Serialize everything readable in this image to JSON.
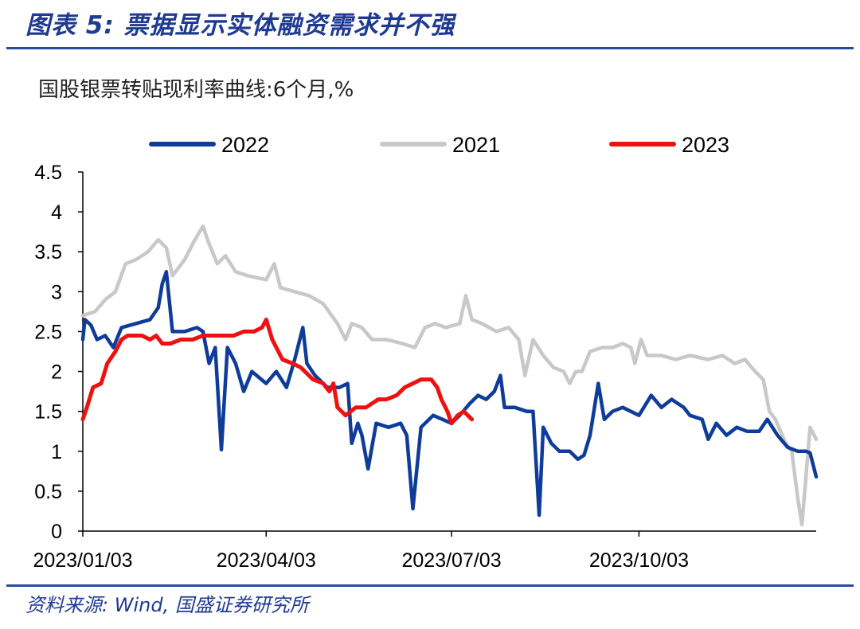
{
  "header": {
    "figure_title": "图表 5:  票据显示实体融资需求并不强",
    "subtitle": "国股银票转贴现利率曲线:6个月,%"
  },
  "footer": {
    "source": "资料来源:  Wind,  国盛证券研究所"
  },
  "colors": {
    "title_blue": "#1f3a93",
    "rule_blue": "#2a4aa0",
    "series_2022": "#0f3c9a",
    "series_2021": "#c8c8c8",
    "series_2023": "#ee1111"
  },
  "chart_data": {
    "type": "line",
    "title": "国股银票转贴现利率曲线:6个月,%",
    "ylim": [
      0,
      4.5
    ],
    "y_ticks": [
      "0",
      "0.5",
      "1",
      "1.5",
      "2",
      "2.5",
      "3",
      "3.5",
      "4",
      "4.5"
    ],
    "x_range": [
      "2023-01-03",
      "2023-12-29"
    ],
    "x_ticks": [
      {
        "date": "2023-01-03",
        "label": "2023/01/03"
      },
      {
        "date": "2023-04-03",
        "label": "2023/04/03"
      },
      {
        "date": "2023-07-03",
        "label": "2023/07/03"
      },
      {
        "date": "2023-10-03",
        "label": "2023/10/03"
      }
    ],
    "grid": false,
    "legend_position": "top",
    "series": [
      {
        "name": "2022",
        "color_key": "series_2022",
        "points": [
          [
            "2023-01-03",
            2.4
          ],
          [
            "2023-01-04",
            2.65
          ],
          [
            "2023-01-07",
            2.58
          ],
          [
            "2023-01-10",
            2.4
          ],
          [
            "2023-01-14",
            2.45
          ],
          [
            "2023-01-18",
            2.3
          ],
          [
            "2023-01-22",
            2.55
          ],
          [
            "2023-01-29",
            2.6
          ],
          [
            "2023-02-05",
            2.65
          ],
          [
            "2023-02-09",
            2.8
          ],
          [
            "2023-02-11",
            3.1
          ],
          [
            "2023-02-13",
            3.25
          ],
          [
            "2023-02-16",
            2.5
          ],
          [
            "2023-02-22",
            2.5
          ],
          [
            "2023-02-28",
            2.55
          ],
          [
            "2023-03-03",
            2.5
          ],
          [
            "2023-03-06",
            2.1
          ],
          [
            "2023-03-09",
            2.3
          ],
          [
            "2023-03-12",
            1.02
          ],
          [
            "2023-03-15",
            2.3
          ],
          [
            "2023-03-19",
            2.1
          ],
          [
            "2023-03-23",
            1.75
          ],
          [
            "2023-03-27",
            2.0
          ],
          [
            "2023-04-03",
            1.85
          ],
          [
            "2023-04-08",
            2.0
          ],
          [
            "2023-04-13",
            1.8
          ],
          [
            "2023-04-17",
            2.15
          ],
          [
            "2023-04-21",
            2.55
          ],
          [
            "2023-04-23",
            2.1
          ],
          [
            "2023-04-27",
            1.95
          ],
          [
            "2023-05-03",
            1.8
          ],
          [
            "2023-05-09",
            1.8
          ],
          [
            "2023-05-13",
            1.85
          ],
          [
            "2023-05-15",
            1.1
          ],
          [
            "2023-05-18",
            1.35
          ],
          [
            "2023-05-20",
            1.2
          ],
          [
            "2023-05-23",
            0.78
          ],
          [
            "2023-05-27",
            1.35
          ],
          [
            "2023-06-02",
            1.3
          ],
          [
            "2023-06-08",
            1.35
          ],
          [
            "2023-06-11",
            1.2
          ],
          [
            "2023-06-14",
            0.28
          ],
          [
            "2023-06-18",
            1.3
          ],
          [
            "2023-06-24",
            1.45
          ],
          [
            "2023-07-03",
            1.35
          ],
          [
            "2023-07-07",
            1.45
          ],
          [
            "2023-07-12",
            1.6
          ],
          [
            "2023-07-16",
            1.7
          ],
          [
            "2023-07-20",
            1.65
          ],
          [
            "2023-07-24",
            1.75
          ],
          [
            "2023-07-27",
            1.95
          ],
          [
            "2023-07-29",
            1.55
          ],
          [
            "2023-08-03",
            1.55
          ],
          [
            "2023-08-09",
            1.5
          ],
          [
            "2023-08-12",
            1.5
          ],
          [
            "2023-08-15",
            0.2
          ],
          [
            "2023-08-17",
            1.3
          ],
          [
            "2023-08-21",
            1.1
          ],
          [
            "2023-08-25",
            1.0
          ],
          [
            "2023-08-30",
            1.0
          ],
          [
            "2023-09-03",
            0.9
          ],
          [
            "2023-09-06",
            0.95
          ],
          [
            "2023-09-09",
            1.2
          ],
          [
            "2023-09-13",
            1.85
          ],
          [
            "2023-09-16",
            1.4
          ],
          [
            "2023-09-20",
            1.5
          ],
          [
            "2023-09-25",
            1.55
          ],
          [
            "2023-10-03",
            1.45
          ],
          [
            "2023-10-09",
            1.7
          ],
          [
            "2023-10-14",
            1.55
          ],
          [
            "2023-10-19",
            1.65
          ],
          [
            "2023-10-25",
            1.55
          ],
          [
            "2023-10-28",
            1.45
          ],
          [
            "2023-11-03",
            1.4
          ],
          [
            "2023-11-06",
            1.15
          ],
          [
            "2023-11-10",
            1.35
          ],
          [
            "2023-11-15",
            1.2
          ],
          [
            "2023-11-20",
            1.3
          ],
          [
            "2023-11-25",
            1.25
          ],
          [
            "2023-12-01",
            1.25
          ],
          [
            "2023-12-05",
            1.4
          ],
          [
            "2023-12-10",
            1.2
          ],
          [
            "2023-12-15",
            1.05
          ],
          [
            "2023-12-20",
            1.0
          ],
          [
            "2023-12-24",
            1.0
          ],
          [
            "2023-12-26",
            0.98
          ],
          [
            "2023-12-29",
            0.68
          ]
        ]
      },
      {
        "name": "2021",
        "color_key": "series_2021",
        "points": [
          [
            "2023-01-03",
            2.7
          ],
          [
            "2023-01-09",
            2.75
          ],
          [
            "2023-01-14",
            2.9
          ],
          [
            "2023-01-19",
            3.0
          ],
          [
            "2023-01-24",
            3.35
          ],
          [
            "2023-01-29",
            3.4
          ],
          [
            "2023-02-04",
            3.5
          ],
          [
            "2023-02-09",
            3.65
          ],
          [
            "2023-02-13",
            3.55
          ],
          [
            "2023-02-16",
            3.2
          ],
          [
            "2023-02-22",
            3.4
          ],
          [
            "2023-02-27",
            3.65
          ],
          [
            "2023-03-03",
            3.82
          ],
          [
            "2023-03-06",
            3.6
          ],
          [
            "2023-03-10",
            3.35
          ],
          [
            "2023-03-14",
            3.45
          ],
          [
            "2023-03-19",
            3.25
          ],
          [
            "2023-03-25",
            3.2
          ],
          [
            "2023-04-03",
            3.15
          ],
          [
            "2023-04-07",
            3.35
          ],
          [
            "2023-04-10",
            3.05
          ],
          [
            "2023-04-17",
            3.0
          ],
          [
            "2023-04-24",
            2.95
          ],
          [
            "2023-05-01",
            2.85
          ],
          [
            "2023-05-08",
            2.6
          ],
          [
            "2023-05-12",
            2.4
          ],
          [
            "2023-05-15",
            2.6
          ],
          [
            "2023-05-20",
            2.55
          ],
          [
            "2023-05-25",
            2.4
          ],
          [
            "2023-06-01",
            2.4
          ],
          [
            "2023-06-09",
            2.35
          ],
          [
            "2023-06-15",
            2.3
          ],
          [
            "2023-06-20",
            2.55
          ],
          [
            "2023-06-25",
            2.6
          ],
          [
            "2023-06-30",
            2.55
          ],
          [
            "2023-07-07",
            2.6
          ],
          [
            "2023-07-10",
            2.95
          ],
          [
            "2023-07-13",
            2.65
          ],
          [
            "2023-07-18",
            2.6
          ],
          [
            "2023-07-25",
            2.5
          ],
          [
            "2023-07-31",
            2.55
          ],
          [
            "2023-08-05",
            2.4
          ],
          [
            "2023-08-08",
            1.95
          ],
          [
            "2023-08-12",
            2.4
          ],
          [
            "2023-08-17",
            2.2
          ],
          [
            "2023-08-22",
            2.05
          ],
          [
            "2023-08-27",
            2.0
          ],
          [
            "2023-08-30",
            1.85
          ],
          [
            "2023-09-02",
            2.0
          ],
          [
            "2023-09-05",
            2.0
          ],
          [
            "2023-09-09",
            2.25
          ],
          [
            "2023-09-15",
            2.3
          ],
          [
            "2023-09-20",
            2.3
          ],
          [
            "2023-09-25",
            2.35
          ],
          [
            "2023-09-29",
            2.3
          ],
          [
            "2023-10-01",
            2.1
          ],
          [
            "2023-10-04",
            2.4
          ],
          [
            "2023-10-07",
            2.2
          ],
          [
            "2023-10-14",
            2.2
          ],
          [
            "2023-10-21",
            2.15
          ],
          [
            "2023-10-28",
            2.2
          ],
          [
            "2023-11-06",
            2.15
          ],
          [
            "2023-11-13",
            2.2
          ],
          [
            "2023-11-19",
            2.1
          ],
          [
            "2023-11-24",
            2.15
          ],
          [
            "2023-11-29",
            2.0
          ],
          [
            "2023-12-03",
            1.9
          ],
          [
            "2023-12-06",
            1.5
          ],
          [
            "2023-12-09",
            1.4
          ],
          [
            "2023-12-14",
            1.1
          ],
          [
            "2023-12-17",
            1.0
          ],
          [
            "2023-12-20",
            0.4
          ],
          [
            "2023-12-22",
            0.08
          ],
          [
            "2023-12-26",
            1.3
          ],
          [
            "2023-12-29",
            1.15
          ]
        ]
      },
      {
        "name": "2023",
        "color_key": "series_2023",
        "points": [
          [
            "2023-01-03",
            1.4
          ],
          [
            "2023-01-05",
            1.55
          ],
          [
            "2023-01-08",
            1.8
          ],
          [
            "2023-01-12",
            1.85
          ],
          [
            "2023-01-15",
            2.1
          ],
          [
            "2023-01-19",
            2.25
          ],
          [
            "2023-01-22",
            2.4
          ],
          [
            "2023-01-25",
            2.45
          ],
          [
            "2023-02-01",
            2.45
          ],
          [
            "2023-02-05",
            2.4
          ],
          [
            "2023-02-08",
            2.45
          ],
          [
            "2023-02-11",
            2.35
          ],
          [
            "2023-02-15",
            2.35
          ],
          [
            "2023-02-20",
            2.4
          ],
          [
            "2023-02-26",
            2.4
          ],
          [
            "2023-03-03",
            2.45
          ],
          [
            "2023-03-08",
            2.45
          ],
          [
            "2023-03-13",
            2.45
          ],
          [
            "2023-03-18",
            2.45
          ],
          [
            "2023-03-23",
            2.5
          ],
          [
            "2023-03-28",
            2.5
          ],
          [
            "2023-04-01",
            2.55
          ],
          [
            "2023-04-03",
            2.65
          ],
          [
            "2023-04-06",
            2.4
          ],
          [
            "2023-04-11",
            2.15
          ],
          [
            "2023-04-16",
            2.1
          ],
          [
            "2023-04-20",
            2.05
          ],
          [
            "2023-04-26",
            1.9
          ],
          [
            "2023-05-01",
            1.85
          ],
          [
            "2023-05-04",
            1.75
          ],
          [
            "2023-05-06",
            1.85
          ],
          [
            "2023-05-08",
            1.55
          ],
          [
            "2023-05-12",
            1.45
          ],
          [
            "2023-05-17",
            1.55
          ],
          [
            "2023-05-22",
            1.55
          ],
          [
            "2023-05-28",
            1.65
          ],
          [
            "2023-06-01",
            1.65
          ],
          [
            "2023-06-06",
            1.7
          ],
          [
            "2023-06-10",
            1.8
          ],
          [
            "2023-06-14",
            1.85
          ],
          [
            "2023-06-18",
            1.9
          ],
          [
            "2023-06-23",
            1.9
          ],
          [
            "2023-06-26",
            1.8
          ],
          [
            "2023-06-28",
            1.65
          ],
          [
            "2023-07-01",
            1.5
          ],
          [
            "2023-07-03",
            1.35
          ],
          [
            "2023-07-06",
            1.45
          ],
          [
            "2023-07-09",
            1.5
          ],
          [
            "2023-07-13",
            1.4
          ]
        ]
      }
    ]
  }
}
